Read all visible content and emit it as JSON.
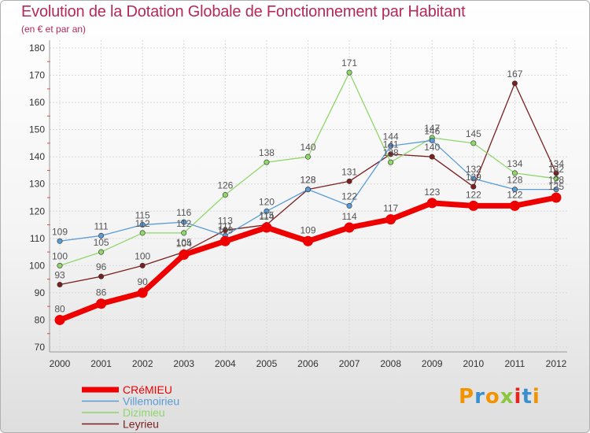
{
  "title": "Evolution de la Dotation Globale de Fonctionnement par Habitant",
  "subtitle": "(en € et par an)",
  "logo": {
    "text": "Proxiti",
    "letters": [
      "P",
      "r",
      "o",
      "x",
      "i",
      "t",
      "i"
    ],
    "colors": [
      "#f29400",
      "#3a8fd0",
      "#f29400",
      "#8cc63f",
      "#e52421",
      "#3a8fd0",
      "#f29400"
    ]
  },
  "chart_data": {
    "type": "line",
    "title": "Evolution de la Dotation Globale de Fonctionnement par Habitant",
    "subtitle": "(en € et par an)",
    "x": [
      "2000",
      "2001",
      "2002",
      "2003",
      "2004",
      "2005",
      "2006",
      "2007",
      "2008",
      "2009",
      "2010",
      "2011",
      "2012"
    ],
    "ylim": [
      70,
      180
    ],
    "yticks": [
      70,
      80,
      90,
      100,
      110,
      120,
      130,
      140,
      150,
      160,
      170,
      180
    ],
    "legend_position": "bottom-left",
    "series": [
      {
        "name": "CRéMIEU",
        "color": "#ee0000",
        "line_width": 7,
        "marker_radius": 6.5,
        "values": [
          80,
          86,
          90,
          104,
          109,
          114,
          109,
          114,
          117,
          123,
          122,
          122,
          125
        ],
        "labels": [
          "80",
          "86",
          "90",
          "104",
          "109",
          "114",
          "109",
          "114",
          "117",
          "123",
          "122",
          "122",
          "125"
        ]
      },
      {
        "name": "Villemoirieu",
        "color": "#5b9bd5",
        "line_width": 1.3,
        "marker_radius": 3.2,
        "values": [
          109,
          111,
          115,
          116,
          111,
          120,
          128,
          122,
          144,
          146,
          132,
          128,
          128
        ],
        "labels": [
          "109",
          "111",
          "115",
          "116",
          "111",
          "120",
          "128",
          "122",
          "144",
          "146",
          "132",
          "128",
          "128"
        ]
      },
      {
        "name": "Dizimieu",
        "color": "#8fd66b",
        "line_width": 1.3,
        "marker_radius": 3.2,
        "values": [
          100,
          105,
          112,
          112,
          126,
          138,
          140,
          171,
          138,
          147,
          145,
          134,
          132
        ],
        "labels": [
          "100",
          "105",
          "112",
          "112",
          "126",
          "138",
          "140",
          "171",
          "138",
          "147",
          "145",
          "134",
          "132"
        ]
      },
      {
        "name": "Leyrieu",
        "color": "#7a1f1f",
        "line_width": 1.3,
        "marker_radius": 3.2,
        "values": [
          93,
          96,
          100,
          105,
          113,
          115,
          128,
          131,
          141,
          140,
          129,
          167,
          134
        ],
        "labels": [
          "93",
          "96",
          "100",
          "105",
          "113",
          "115",
          "128",
          "131",
          "141",
          "140",
          "129",
          "167",
          "134"
        ]
      }
    ]
  }
}
